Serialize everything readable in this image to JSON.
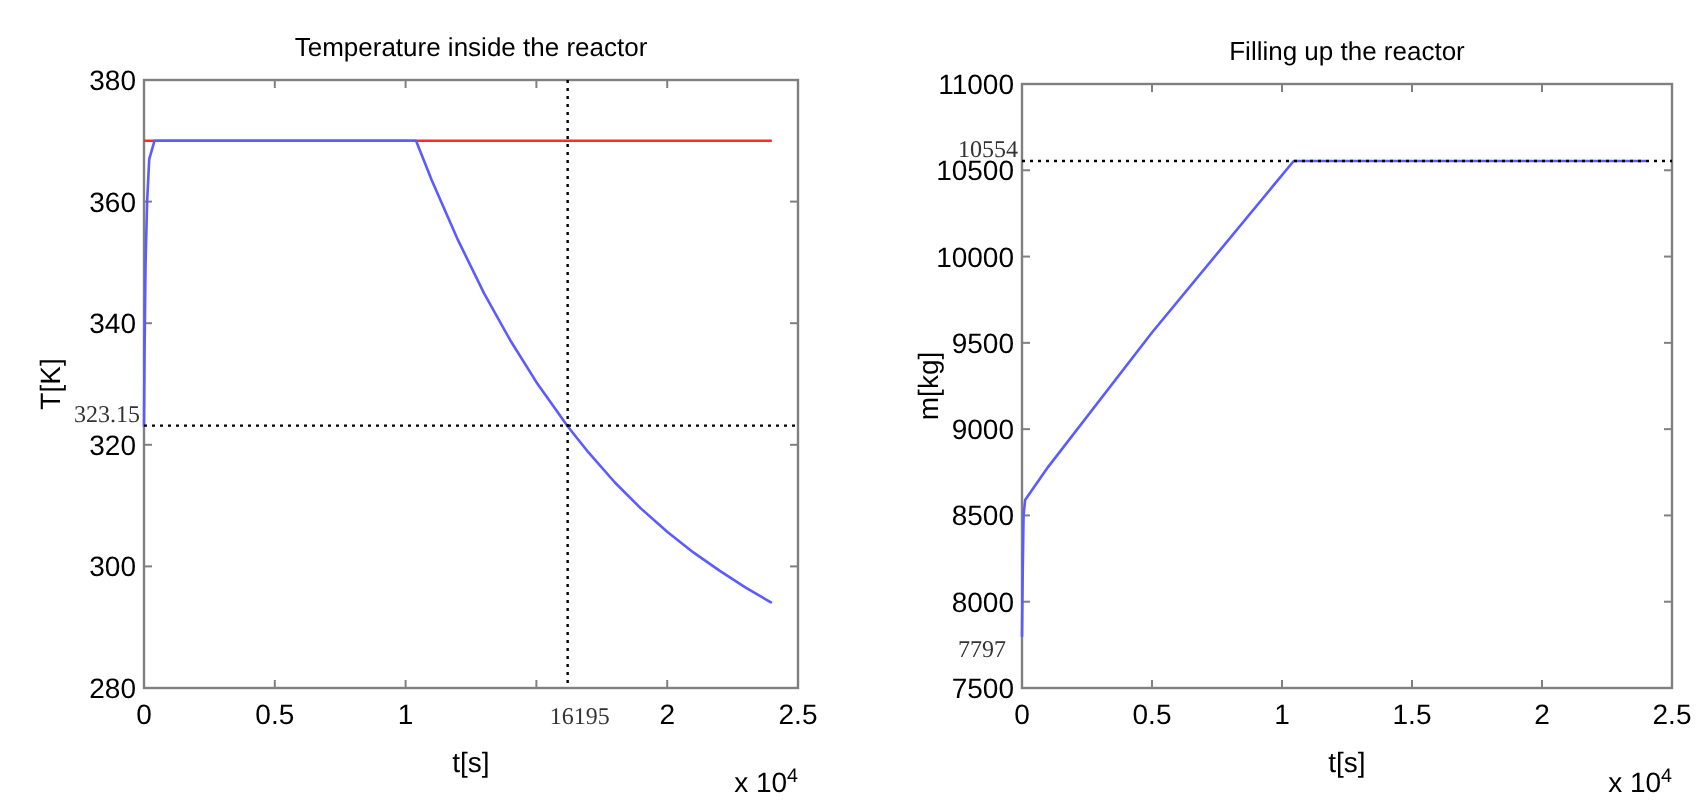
{
  "chart_data": [
    {
      "type": "line",
      "title": "Temperature inside the reactor",
      "xlabel": "t[s]",
      "ylabel": "T[K]",
      "xlim": [
        0,
        2.5
      ],
      "xticks": [
        0,
        0.5,
        1,
        {
          "value": 1.5,
          "label": null
        },
        2,
        2.5
      ],
      "ylim": [
        280,
        380
      ],
      "yticks": [
        280,
        300,
        320,
        340,
        360,
        380
      ],
      "series": [
        {
          "color": "#ff2a2a",
          "x": [
            0,
            2.4
          ],
          "values": [
            370,
            370
          ]
        },
        {
          "color": "#5b5bff",
          "x": [
            0,
            0.002,
            0.006,
            0.012,
            0.02,
            0.04,
            1.04,
            1.1,
            1.2,
            1.3,
            1.4,
            1.5,
            1.62,
            1.7,
            1.8,
            1.9,
            2.0,
            2.1,
            2.2,
            2.3,
            2.4
          ],
          "values": [
            323,
            335,
            350,
            360,
            367,
            370,
            370,
            363.5,
            353.7,
            344.9,
            337.2,
            330.3,
            323,
            318.7,
            313.8,
            309.5,
            305.7,
            302.3,
            299.3,
            296.5,
            294
          ]
        }
      ],
      "ref_lines": [
        {
          "axis": "y",
          "value": 323.15,
          "label": "323.15",
          "color": "#000000",
          "line_style": "dotted"
        },
        {
          "axis": "x",
          "value": 1.6195,
          "color": "#000000",
          "line_style": "dotted"
        }
      ],
      "annotations": [
        "x 10$^{4}$",
        {
          "text": "16195",
          "x": 1.6195,
          "y": 280
        }
      ]
    },
    {
      "type": "line",
      "title": "Filling up the reactor",
      "xlabel": "t[s]",
      "ylabel": "m[kg]",
      "xlim": [
        0,
        2.5
      ],
      "xticks": [
        0,
        0.5,
        1,
        1.5,
        2,
        2.5
      ],
      "ylim": [
        7500,
        11000
      ],
      "yticks": [
        7500,
        8000,
        8500,
        9000,
        9500,
        10000,
        10500,
        11000
      ],
      "series": [
        {
          "color": "#5b5bff",
          "x": [
            0,
            0.003,
            0.006,
            0.012,
            0.1,
            0.5,
            1.045,
            2.4
          ],
          "values": [
            7797,
            8200,
            8500,
            8590,
            8780,
            9560,
            10554,
            10554
          ]
        }
      ],
      "ref_lines": [
        {
          "axis": "y",
          "value": 10554,
          "label": "10554",
          "color": "#000000",
          "line_style": "dotted"
        }
      ],
      "annotations": [
        "x 10$^{4}$",
        {
          "text": "7797",
          "x": 0,
          "y": 7797
        }
      ]
    }
  ]
}
